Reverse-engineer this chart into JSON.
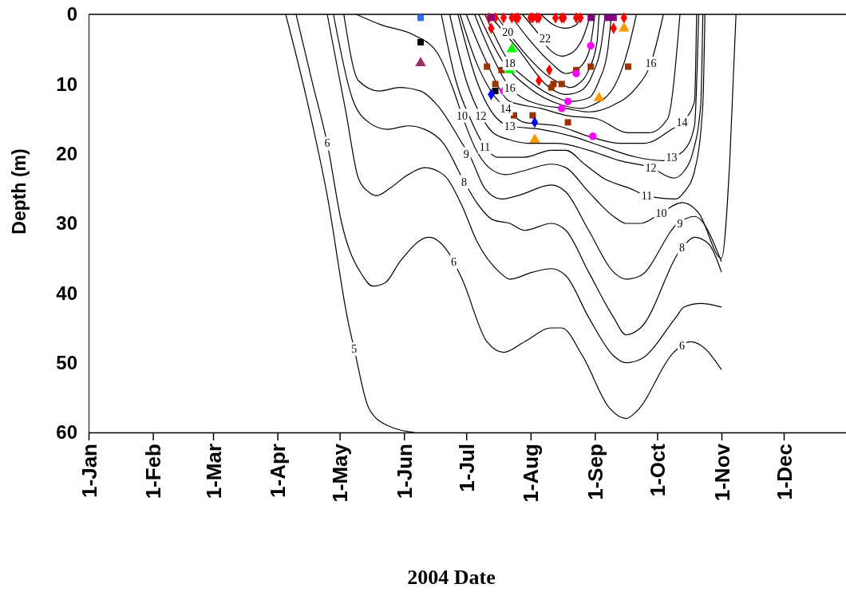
{
  "chart_data": {
    "type": "line",
    "xlabel": "2004 Date",
    "ylabel": "Depth (m)",
    "xlim": [
      "2004-01-01",
      "2004-12-31"
    ],
    "xticks": [
      {
        "value": "2004-01-01",
        "label": "1-Jan"
      },
      {
        "value": "2004-02-01",
        "label": "1-Feb"
      },
      {
        "value": "2004-03-01",
        "label": "1-Mar"
      },
      {
        "value": "2004-04-01",
        "label": "1-Apr"
      },
      {
        "value": "2004-05-01",
        "label": "1-May"
      },
      {
        "value": "2004-06-01",
        "label": "1-Jun"
      },
      {
        "value": "2004-07-01",
        "label": "1-Jul"
      },
      {
        "value": "2004-08-01",
        "label": "1-Aug"
      },
      {
        "value": "2004-09-01",
        "label": "1-Sep"
      },
      {
        "value": "2004-10-01",
        "label": "1-Oct"
      },
      {
        "value": "2004-11-01",
        "label": "1-Nov"
      },
      {
        "value": "2004-12-01",
        "label": "1-Dec"
      }
    ],
    "ylim": [
      60,
      0
    ],
    "yticks": [
      0,
      10,
      20,
      30,
      40,
      50,
      60
    ],
    "series": [
      {
        "color": "#000000",
        "x": [
          "2004-04-05",
          "2004-04-15",
          "2004-04-25",
          "2004-05-05",
          "2004-05-08",
          "2004-05-15",
          "2004-05-24",
          "2004-06-06"
        ],
        "values": [
          0,
          12,
          26,
          44,
          48,
          56.5,
          59,
          60
        ]
      },
      {
        "color": "#000000",
        "x": [
          "2004-04-10",
          "2004-04-18",
          "2004-04-25",
          "2004-05-02",
          "2004-05-12",
          "2004-05-17",
          "2004-05-23",
          "2004-05-30",
          "2004-06-13",
          "2004-06-22",
          "2004-06-29",
          "2004-07-11",
          "2004-07-19",
          "2004-07-29",
          "2004-08-11",
          "2004-08-16",
          "2004-08-26",
          "2004-09-08",
          "2004-09-16",
          "2004-09-21",
          "2004-10-09",
          "2004-10-17",
          "2004-10-22",
          "2004-11-01"
        ],
        "values": [
          0,
          10,
          18.5,
          30,
          37.5,
          39,
          38.5,
          35.5,
          32,
          34,
          38,
          47,
          48.5,
          47,
          45,
          45,
          49,
          56.5,
          58,
          57,
          48.5,
          47,
          47.5,
          51
        ]
      },
      {
        "color": "#000000",
        "x": [
          "2004-04-25",
          "2004-05-04",
          "2004-05-10",
          "2004-05-15",
          "2004-05-19",
          "2004-05-25",
          "2004-06-03",
          "2004-06-11",
          "2004-06-20",
          "2004-06-29",
          "2004-07-06",
          "2004-07-17",
          "2004-07-22",
          "2004-08-02",
          "2004-08-11",
          "2004-08-18",
          "2004-08-29",
          "2004-09-10",
          "2004-09-16",
          "2004-09-23",
          "2004-10-10",
          "2004-10-14",
          "2004-10-22",
          "2004-11-01"
        ],
        "values": [
          0,
          14,
          23.5,
          25.5,
          26,
          25,
          23,
          22,
          23,
          27.5,
          32.5,
          37,
          38,
          37,
          36.5,
          37.5,
          43.5,
          49,
          50,
          49.5,
          43.5,
          42,
          41.5,
          42
        ]
      },
      {
        "color": "#000000",
        "x": [
          "2004-04-28",
          "2004-05-07",
          "2004-05-15",
          "2004-05-24",
          "2004-06-03",
          "2004-06-11",
          "2004-06-20",
          "2004-06-30",
          "2004-07-06",
          "2004-07-14",
          "2004-07-22",
          "2004-07-29",
          "2004-08-11",
          "2004-08-18",
          "2004-08-29",
          "2004-09-10",
          "2004-09-16",
          "2004-09-23",
          "2004-10-13",
          "2004-10-19",
          "2004-10-26",
          "2004-11-01"
        ],
        "values": [
          0,
          12,
          15.5,
          16.5,
          16,
          16.5,
          18.5,
          24,
          27,
          29.5,
          30,
          31,
          30,
          31,
          37,
          43.5,
          46,
          45,
          33.5,
          32,
          33,
          37
        ]
      },
      {
        "color": "#000000",
        "x": [
          "2004-05-03",
          "2004-05-10",
          "2004-05-20",
          "2004-05-30",
          "2004-06-09",
          "2004-06-17",
          "2004-06-29",
          "2004-07-03",
          "2004-07-10",
          "2004-07-18",
          "2004-07-26",
          "2004-08-11",
          "2004-08-18",
          "2004-08-29",
          "2004-09-10",
          "2004-09-16",
          "2004-09-23",
          "2004-10-11",
          "2004-10-19",
          "2004-11-01"
        ],
        "values": [
          0,
          9.5,
          11,
          10.5,
          11,
          13,
          18.5,
          20.5,
          25,
          26.5,
          26,
          24.5,
          25.5,
          31,
          37,
          38,
          37.5,
          30,
          29,
          35.5
        ]
      },
      {
        "color": "#000000",
        "x": [
          "2004-05-09",
          "2004-05-21",
          "2004-06-06",
          "2004-06-17",
          "2004-06-25",
          "2004-06-29",
          "2004-07-05",
          "2004-07-12",
          "2004-07-20",
          "2004-07-28",
          "2004-08-11",
          "2004-08-18",
          "2004-08-29",
          "2004-09-10",
          "2004-09-16",
          "2004-09-23",
          "2004-10-03",
          "2004-10-13",
          "2004-10-21",
          "2004-11-01",
          "2004-11-05",
          "2004-11-08"
        ],
        "values": [
          0,
          1.5,
          3,
          5.5,
          11,
          14.5,
          19,
          22,
          23,
          22.5,
          21.5,
          22,
          25.5,
          29,
          30,
          30,
          28.5,
          27,
          28.5,
          35,
          21,
          0
        ]
      },
      {
        "color": "#000000",
        "x": [
          "2004-06-19",
          "2004-06-26",
          "2004-07-03",
          "2004-07-10",
          "2004-07-16",
          "2004-07-22",
          "2004-07-29",
          "2004-08-11",
          "2004-08-18",
          "2004-08-27",
          "2004-09-05",
          "2004-09-18",
          "2004-09-26",
          "2004-10-10",
          "2004-10-14",
          "2004-10-19",
          "2004-10-23",
          "2004-10-24"
        ],
        "values": [
          0,
          9.5,
          15,
          19,
          20.5,
          20.5,
          20.5,
          19.5,
          19.5,
          21.5,
          23.5,
          25,
          26,
          26.5,
          25.5,
          22.5,
          13,
          0
        ]
      },
      {
        "color": "#000000",
        "x": [
          "2004-06-23",
          "2004-07-01",
          "2004-07-08",
          "2004-07-14",
          "2004-07-22",
          "2004-07-31",
          "2004-08-14",
          "2004-08-29",
          "2004-09-13",
          "2004-09-28",
          "2004-10-09",
          "2004-10-14",
          "2004-10-18",
          "2004-10-22",
          "2004-10-23"
        ],
        "values": [
          0,
          9.5,
          14.5,
          17,
          18,
          18.5,
          18.5,
          19.5,
          21,
          22,
          23.5,
          22.5,
          20,
          13,
          0
        ]
      },
      {
        "color": "#000000",
        "x": [
          "2004-06-27",
          "2004-07-06",
          "2004-07-16",
          "2004-07-22",
          "2004-08-06",
          "2004-08-21",
          "2004-09-05",
          "2004-09-21",
          "2004-10-04",
          "2004-10-08",
          "2004-10-14",
          "2004-10-19",
          "2004-10-21"
        ],
        "values": [
          0,
          9.5,
          15,
          16,
          16.5,
          17.5,
          19,
          20.5,
          21,
          20.5,
          19.5,
          16,
          0
        ]
      },
      {
        "color": "#000000",
        "x": [
          "2004-06-28",
          "2004-07-06",
          "2004-07-14",
          "2004-07-20",
          "2004-07-29",
          "2004-08-14",
          "2004-08-29",
          "2004-09-13",
          "2004-09-25",
          "2004-10-08",
          "2004-10-13",
          "2004-10-19",
          "2004-10-20"
        ],
        "values": [
          0,
          7,
          11.5,
          13.5,
          15.5,
          16,
          17.5,
          18.5,
          18.5,
          16.5,
          15.5,
          12.5,
          0
        ]
      },
      {
        "color": "#000000",
        "x": [
          "2004-07-01",
          "2004-07-11",
          "2004-07-22",
          "2004-08-06",
          "2004-08-18",
          "2004-09-02",
          "2004-09-17",
          "2004-09-27",
          "2004-10-06",
          "2004-10-12"
        ],
        "values": [
          0,
          7,
          12.5,
          13.5,
          14.5,
          15,
          17,
          17,
          15,
          0
        ]
      },
      {
        "color": "#000000",
        "x": [
          "2004-07-05",
          "2004-07-12",
          "2004-07-22",
          "2004-08-06",
          "2004-08-18",
          "2004-08-29",
          "2004-09-10",
          "2004-09-21",
          "2004-09-28",
          "2004-10-04"
        ],
        "values": [
          0,
          5,
          10.5,
          13,
          13.5,
          14,
          13,
          10.5,
          7,
          0
        ]
      },
      {
        "color": "#000000",
        "x": [
          "2004-07-07",
          "2004-07-18",
          "2004-07-31",
          "2004-08-16",
          "2004-08-25",
          "2004-08-31",
          "2004-09-10",
          "2004-09-17",
          "2004-09-21"
        ],
        "values": [
          0,
          6.5,
          10.5,
          13,
          13.5,
          13,
          10.5,
          5,
          0
        ]
      },
      {
        "color": "#000000",
        "x": [
          "2004-07-10",
          "2004-07-22",
          "2004-07-31",
          "2004-08-14",
          "2004-08-20",
          "2004-08-29",
          "2004-09-03",
          "2004-09-07",
          "2004-09-09"
        ],
        "values": [
          0,
          7,
          9.5,
          12,
          12.5,
          12,
          9.5,
          5.5,
          0
        ]
      },
      {
        "color": "#000000",
        "x": [
          "2004-07-12",
          "2004-07-26",
          "2004-08-10",
          "2004-08-18",
          "2004-08-25",
          "2004-08-31",
          "2004-09-04",
          "2004-09-06"
        ],
        "values": [
          0,
          5,
          10.5,
          11.5,
          11,
          8.5,
          4.5,
          0
        ]
      },
      {
        "color": "#000000",
        "x": [
          "2004-07-15",
          "2004-07-21",
          "2004-07-29",
          "2004-08-10",
          "2004-08-16",
          "2004-08-20",
          "2004-08-24",
          "2004-08-29",
          "2004-09-02",
          "2004-09-03"
        ],
        "values": [
          0,
          2.5,
          5.5,
          9,
          10,
          10.5,
          10,
          8,
          4,
          0
        ]
      },
      {
        "color": "#000000",
        "x": [
          "2004-07-22",
          "2004-07-31",
          "2004-08-11",
          "2004-08-18",
          "2004-08-23",
          "2004-08-29",
          "2004-09-01"
        ],
        "values": [
          0,
          3.5,
          7,
          8.5,
          8,
          5.5,
          0
        ]
      },
      {
        "color": "#000000",
        "x": [
          "2004-07-28",
          "2004-08-04",
          "2004-08-10",
          "2004-08-16",
          "2004-08-21",
          "2004-08-26",
          "2004-08-30"
        ],
        "values": [
          0,
          2.5,
          5,
          6,
          5.5,
          3.5,
          0
        ]
      },
      {
        "color": "#000000",
        "x": [
          "2004-08-06",
          "2004-08-12",
          "2004-08-18",
          "2004-08-23",
          "2004-08-26"
        ],
        "values": [
          0,
          1.5,
          2,
          1.5,
          0
        ]
      },
      {
        "type": "scatter",
        "marker": "diamond",
        "color": "#ff0000",
        "x": [
          "2004-07-12",
          "2004-07-13",
          "2004-07-15",
          "2004-07-19",
          "2004-07-23",
          "2004-07-25",
          "2004-07-26",
          "2004-08-01",
          "2004-08-02",
          "2004-08-04",
          "2004-08-05",
          "2004-08-05",
          "2004-08-10",
          "2004-08-13",
          "2004-08-16",
          "2004-08-17",
          "2004-08-23",
          "2004-08-25",
          "2004-09-10",
          "2004-09-15"
        ],
        "values": [
          0.5,
          2,
          0.5,
          0.5,
          0.5,
          0.5,
          0.5,
          0.5,
          0.5,
          0.5,
          0.5,
          9.5,
          8,
          0.5,
          0.5,
          0.5,
          0.5,
          0.5,
          2,
          0.5
        ]
      },
      {
        "type": "scatter",
        "marker": "square",
        "color": "#800080",
        "x": [
          "2004-07-13",
          "2004-08-30",
          "2004-09-07",
          "2004-09-10"
        ],
        "values": [
          0.5,
          0.5,
          0.5,
          0.5
        ]
      },
      {
        "type": "scatter",
        "marker": "square",
        "color": "#3366ff",
        "x": [
          "2004-06-09"
        ],
        "values": [
          0.5
        ]
      },
      {
        "type": "scatter",
        "marker": "square",
        "color": "#000000",
        "x": [
          "2004-06-09",
          "2004-07-15"
        ],
        "values": [
          4,
          11
        ]
      },
      {
        "type": "scatter",
        "marker": "triangle",
        "color": "#993366",
        "x": [
          "2004-06-09"
        ],
        "values": [
          7
        ]
      },
      {
        "type": "scatter",
        "marker": "triangle",
        "color": "#00ff00",
        "x": [
          "2004-07-22",
          "2004-07-23"
        ],
        "values": [
          8,
          5
        ]
      },
      {
        "type": "scatter",
        "marker": "square",
        "color": "#993300",
        "x": [
          "2004-07-11",
          "2004-07-18",
          "2004-07-15",
          "2004-07-24",
          "2004-08-02",
          "2004-08-11",
          "2004-08-12",
          "2004-08-16",
          "2004-08-19",
          "2004-08-23",
          "2004-08-30",
          "2004-09-17"
        ],
        "values": [
          7.5,
          8,
          10,
          14.5,
          14.5,
          10.5,
          10,
          10,
          15.5,
          8,
          7.5,
          7.5
        ]
      },
      {
        "type": "scatter",
        "marker": "circle",
        "color": "#ff00ff",
        "x": [
          "2004-07-19",
          "2004-08-16",
          "2004-08-19",
          "2004-08-23",
          "2004-08-30",
          "2004-08-31"
        ],
        "values": [
          11,
          13.5,
          12.5,
          8.5,
          4.5,
          17.5
        ]
      },
      {
        "type": "scatter",
        "marker": "diamond",
        "color": "#0000ff",
        "x": [
          "2004-07-13",
          "2004-08-03"
        ],
        "values": [
          11.5,
          15.5
        ]
      },
      {
        "type": "scatter",
        "marker": "triangle",
        "color": "#ff9900",
        "x": [
          "2004-08-03",
          "2004-09-03",
          "2004-09-15"
        ],
        "values": [
          18,
          12,
          2
        ]
      }
    ],
    "annotations": [
      {
        "text": "5",
        "x": "2004-05-08",
        "y": 48
      },
      {
        "text": "6",
        "x": "2004-04-25",
        "y": 18.5
      },
      {
        "text": "6",
        "x": "2004-06-25",
        "y": 35.5
      },
      {
        "text": "6",
        "x": "2004-10-13",
        "y": 47.5
      },
      {
        "text": "8",
        "x": "2004-06-30",
        "y": 24
      },
      {
        "text": "8",
        "x": "2004-10-13",
        "y": 33.5
      },
      {
        "text": "9",
        "x": "2004-07-01",
        "y": 20
      },
      {
        "text": "9",
        "x": "2004-10-12",
        "y": 30
      },
      {
        "text": "10",
        "x": "2004-06-29",
        "y": 14.5
      },
      {
        "text": "10",
        "x": "2004-10-03",
        "y": 28.5
      },
      {
        "text": "11",
        "x": "2004-07-10",
        "y": 19
      },
      {
        "text": "11",
        "x": "2004-09-26",
        "y": 26
      },
      {
        "text": "12",
        "x": "2004-07-08",
        "y": 14.5
      },
      {
        "text": "12",
        "x": "2004-09-28",
        "y": 22
      },
      {
        "text": "13",
        "x": "2004-07-22",
        "y": 16
      },
      {
        "text": "13",
        "x": "2004-10-08",
        "y": 20.5
      },
      {
        "text": "14",
        "x": "2004-07-20",
        "y": 13.5
      },
      {
        "text": "14",
        "x": "2004-10-13",
        "y": 15.5
      },
      {
        "text": "16",
        "x": "2004-07-22",
        "y": 10.5
      },
      {
        "text": "16",
        "x": "2004-09-28",
        "y": 7
      },
      {
        "text": "18",
        "x": "2004-07-22",
        "y": 7
      },
      {
        "text": "20",
        "x": "2004-07-21",
        "y": 2.5
      },
      {
        "text": "22",
        "x": "2004-08-08",
        "y": 3.5
      }
    ]
  }
}
